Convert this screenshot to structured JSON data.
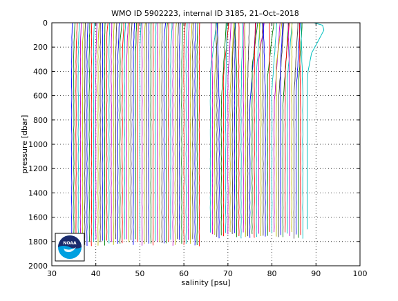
{
  "chart_data": {
    "type": "line",
    "title": "WMO ID 5902223, internal ID 3185, 21–Oct–2018",
    "xlabel": "salinity [psu]",
    "ylabel": "pressure [dbar]",
    "xlim": [
      30,
      100
    ],
    "ylim": [
      0,
      2000
    ],
    "y_reversed": true,
    "x_ticks": [
      30,
      40,
      50,
      60,
      70,
      80,
      90,
      100
    ],
    "y_ticks": [
      0,
      200,
      400,
      600,
      800,
      1000,
      1200,
      1400,
      1600,
      1800,
      2000
    ],
    "grid": true,
    "legend": "none",
    "offset_step": 0.5,
    "series_colors": [
      "#0000ff",
      "#008000",
      "#ff0000",
      "#00bfbf",
      "#bf00bf",
      "#bfbf00",
      "#404040"
    ],
    "profile_groups": [
      {
        "x_start": 34.5,
        "x_end": 63.5,
        "max_pressure": [
          1780,
          1840
        ]
      },
      {
        "x_start": 66.0,
        "x_end": 87.0,
        "max_pressure": [
          1720,
          1780
        ]
      }
    ],
    "highlight_profile": {
      "name": "",
      "color": "#00bfbf",
      "x": [
        89.5,
        91.5,
        91.8,
        90.5,
        89.0,
        88.2,
        88.0,
        88.0
      ],
      "y": [
        0,
        20,
        60,
        150,
        250,
        400,
        500,
        1700
      ]
    }
  },
  "logo": {
    "text": "NOAA",
    "colors": {
      "top": "#1a2a6c",
      "bottom": "#00a0e0"
    }
  }
}
